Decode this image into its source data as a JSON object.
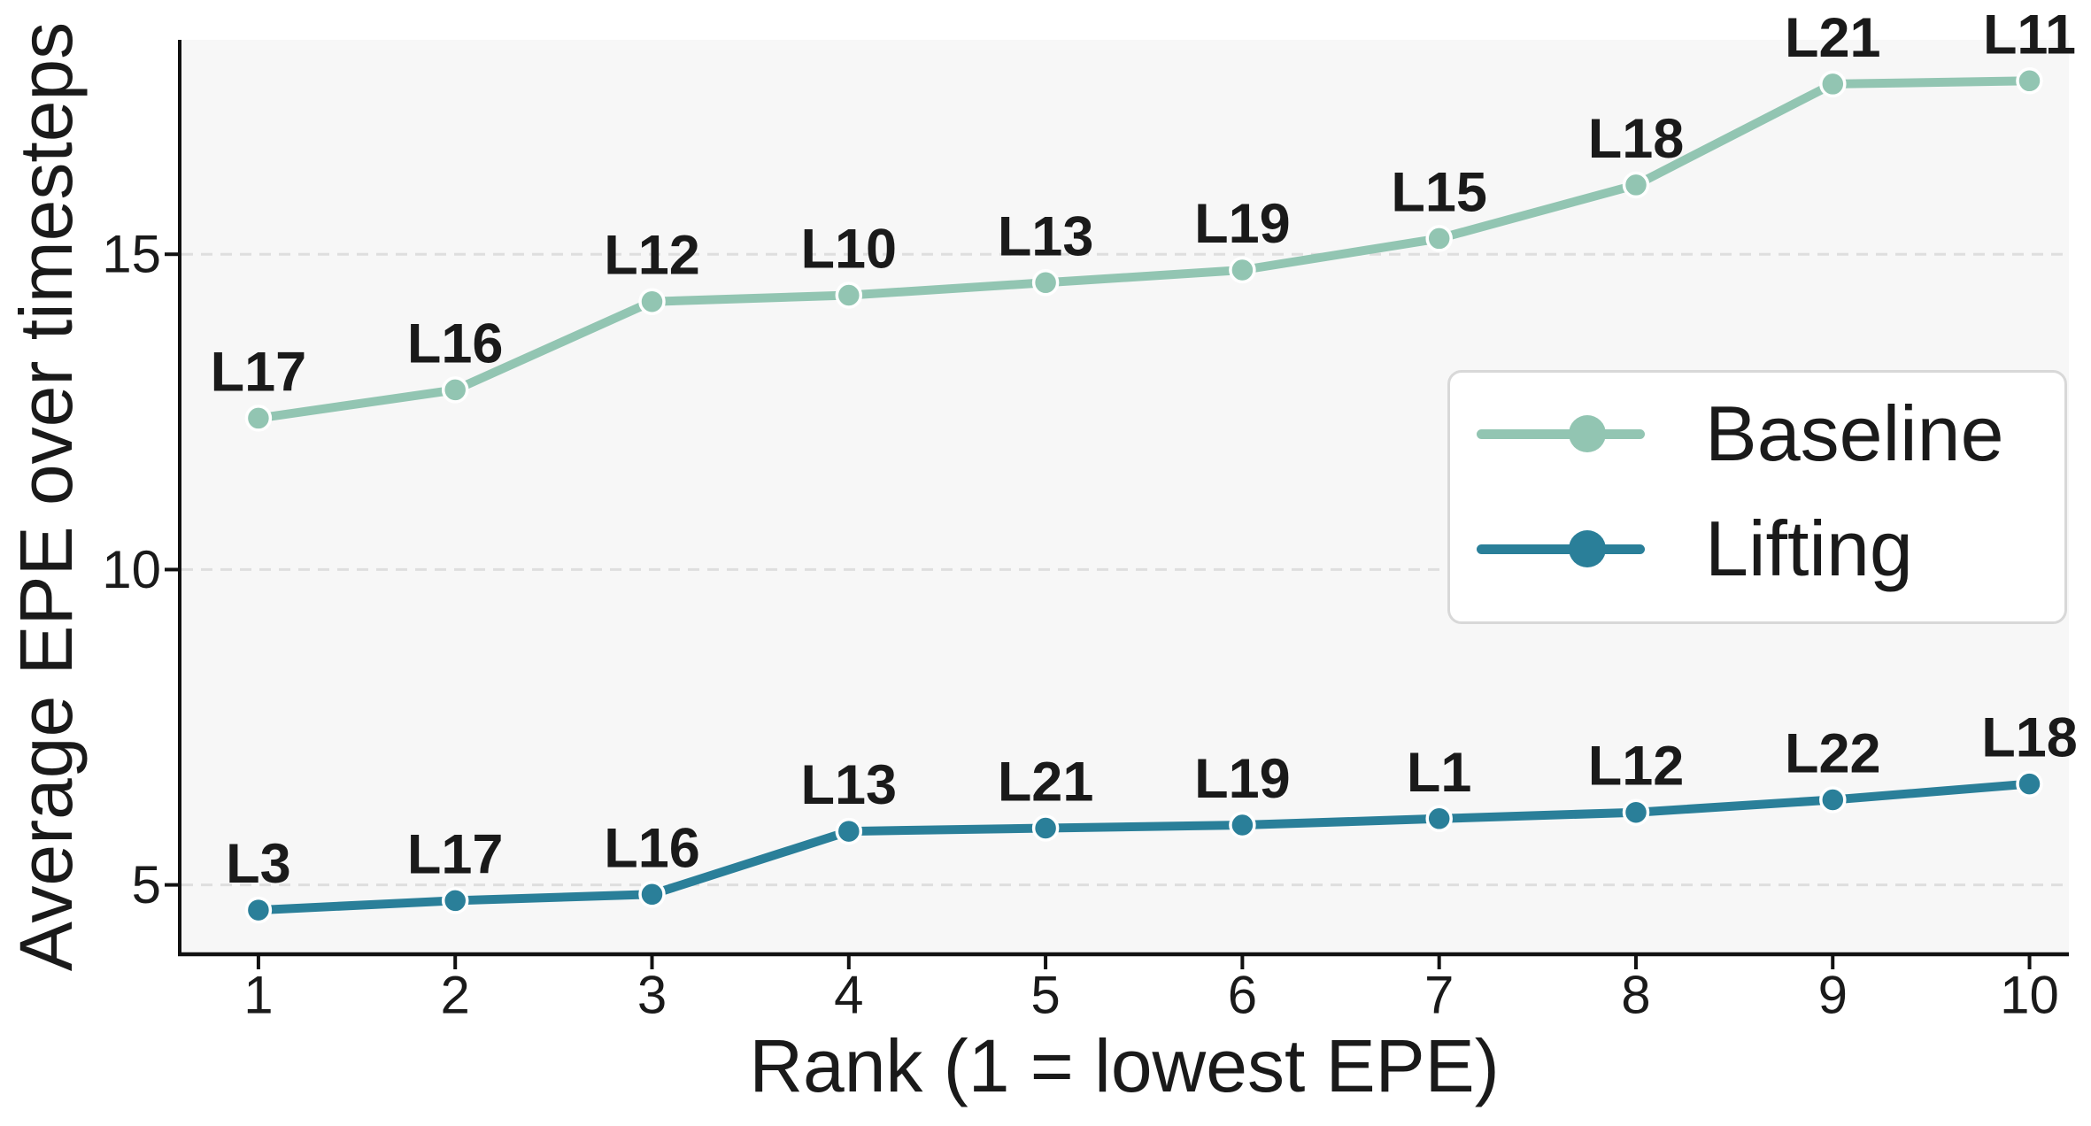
{
  "figure": {
    "background": "#ffffff",
    "plot_background": "#f7f7f7",
    "grid_color": "#dedede",
    "spine_color": "#111111",
    "text_color": "#1a1a1a"
  },
  "chart_data": {
    "type": "line",
    "title": "",
    "xlabel": "Rank (1 = lowest EPE)",
    "ylabel": "Average EPE over timesteps",
    "x": [
      1,
      2,
      3,
      4,
      5,
      6,
      7,
      8,
      9,
      10
    ],
    "x_tick_labels": [
      "1",
      "2",
      "3",
      "4",
      "5",
      "6",
      "7",
      "8",
      "9",
      "10"
    ],
    "y_ticks": [
      {
        "value": 5,
        "label": "5"
      },
      {
        "value": 10,
        "label": "10"
      },
      {
        "value": 15,
        "label": "15"
      }
    ],
    "xlim": [
      0.6,
      10.2
    ],
    "ylim": [
      3.9,
      18.4
    ],
    "grid": "horizontal-dashed",
    "legend_position": "center-right",
    "series": [
      {
        "name": "Baseline",
        "color": "#92c5b2",
        "values": [
          12.4,
          12.85,
          14.25,
          14.35,
          14.55,
          14.75,
          15.25,
          16.1,
          17.7,
          17.75
        ],
        "point_labels": [
          "L17",
          "L16",
          "L12",
          "L10",
          "L13",
          "L19",
          "L15",
          "L18",
          "L21",
          "L11"
        ]
      },
      {
        "name": "Lifting",
        "color": "#2a7f99",
        "values": [
          4.6,
          4.75,
          4.85,
          5.85,
          5.9,
          5.95,
          6.05,
          6.15,
          6.35,
          6.6
        ],
        "point_labels": [
          "L3",
          "L17",
          "L16",
          "L13",
          "L21",
          "L19",
          "L1",
          "L12",
          "L22",
          "L18"
        ]
      }
    ]
  }
}
